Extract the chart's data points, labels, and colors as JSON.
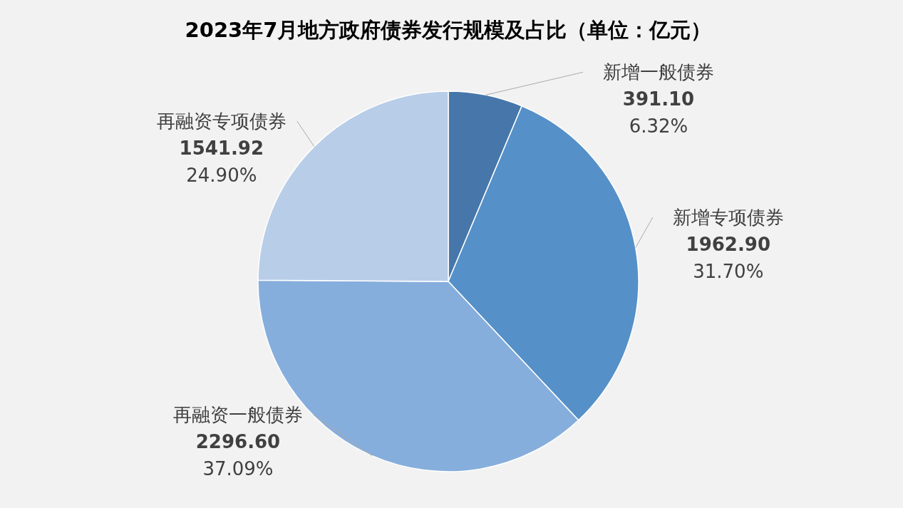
{
  "chart_data": {
    "type": "pie",
    "title": "2023年7月地方政府债券发行规模及占比（单位：亿元）",
    "categories": [
      "新增一般债券",
      "新增专项债券",
      "再融资一般债券",
      "再融资专项债券"
    ],
    "values": [
      391.1,
      1962.9,
      2296.6,
      1541.92
    ],
    "value_labels": [
      "391.10\n6.32%",
      "1962.90\n31.70%",
      "2296.60\n37.09%",
      "1541.92\n24.90%"
    ],
    "colors": [
      "#4777aa",
      "#5590c8",
      "#86aedc",
      "#b8cde8"
    ],
    "legend": false
  }
}
